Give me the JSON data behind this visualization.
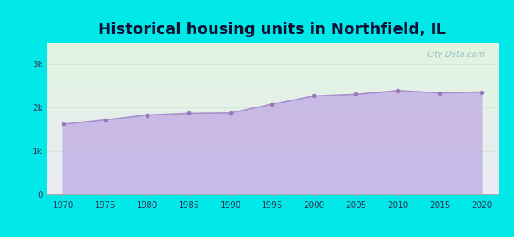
{
  "title": "Historical housing units in Northfield, IL",
  "title_fontsize": 14,
  "title_fontweight": "bold",
  "background_color": "#00e8e8",
  "fill_color": "#c5b5e5",
  "line_color": "#a890cc",
  "marker_color": "#9878bb",
  "years": [
    1970,
    1975,
    1980,
    1985,
    1990,
    1995,
    2000,
    2005,
    2010,
    2015,
    2020
  ],
  "values": [
    1620,
    1720,
    1830,
    1870,
    1880,
    2080,
    2270,
    2310,
    2390,
    2340,
    2360
  ],
  "ylim": [
    0,
    3500
  ],
  "ytick_vals": [
    0,
    1000,
    2000,
    3000
  ],
  "ytick_labels": [
    "0",
    "1k",
    "2k",
    "3k"
  ],
  "xlim": [
    1968,
    2022
  ],
  "watermark": "City-Data.com",
  "watermark_color": "#90b8c0",
  "grid_color": "#d0e8d0",
  "bg_top_color": "#e0f5e0",
  "bg_bottom_color": "#eaeaf5",
  "tick_color": "#333355",
  "spine_color": "#aaaaaa"
}
